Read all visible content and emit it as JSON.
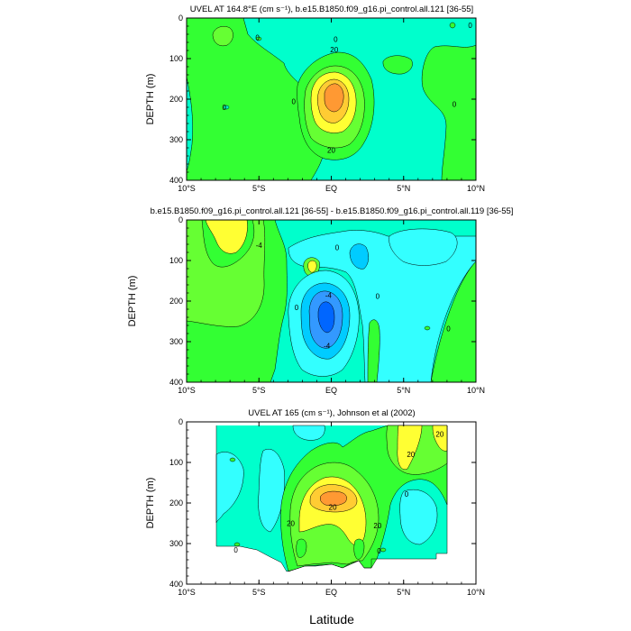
{
  "colors": {
    "cyan": "#33ffff",
    "lightblue": "#00ccff",
    "blue": "#3399ff",
    "darkblue": "#0066ff",
    "aqua": "#00ffcc",
    "green": "#33ff33",
    "lightgreen": "#66ff33",
    "yellow": "#ffff33",
    "orange": "#ffcc33",
    "darkorange": "#ff9933",
    "line": "#000000"
  },
  "x_tick_labels": [
    "10°S",
    "5°S",
    "EQ",
    "5°N",
    "10°N"
  ],
  "xlabel": "Latitude",
  "chart_data": [
    {
      "type": "contour",
      "title": "UVEL AT 164.8°E (cm s⁻¹), b.e15.B1850.f09_g16.pi_control.all.121 [36-55]",
      "xlabel": "",
      "ylabel": "DEPTH (m)",
      "xlim": [
        -10,
        10
      ],
      "ylim": [
        400,
        0
      ],
      "y_ticks": [
        "0",
        "100",
        "200",
        "300",
        "400"
      ],
      "contour_labels": [
        {
          "text": "0",
          "lat": -5.1,
          "depth": 48
        },
        {
          "text": "0",
          "lat": 0.3,
          "depth": 52
        },
        {
          "text": "0",
          "lat": 9.6,
          "depth": 18
        },
        {
          "text": "20",
          "lat": 0.2,
          "depth": 78
        },
        {
          "text": "0",
          "lat": -7.4,
          "depth": 220
        },
        {
          "text": "0",
          "lat": -2.6,
          "depth": 205
        },
        {
          "text": "0",
          "lat": 8.5,
          "depth": 212
        },
        {
          "text": "20",
          "lat": 0.0,
          "depth": 325
        }
      ]
    },
    {
      "type": "contour",
      "title": "b.e15.B1850.f09_g16.pi_control.all.121 [36-55] - b.e15.B1850.f09_g16.pi_control.all.119 [36-55]",
      "xlabel": "",
      "ylabel": "DEPTH (m)",
      "xlim": [
        -10,
        10
      ],
      "ylim": [
        400,
        0
      ],
      "y_ticks": [
        "0",
        "100",
        "200",
        "300",
        "400"
      ],
      "contour_labels": [
        {
          "text": "-4",
          "lat": -5.0,
          "depth": 62
        },
        {
          "text": "0",
          "lat": -2.4,
          "depth": 215
        },
        {
          "text": "0",
          "lat": 0.4,
          "depth": 68
        },
        {
          "text": "0",
          "lat": 3.2,
          "depth": 188
        },
        {
          "text": "0",
          "lat": 8.1,
          "depth": 268
        },
        {
          "text": "-4",
          "lat": -0.3,
          "depth": 310
        },
        {
          "text": "-4",
          "lat": -0.2,
          "depth": 185
        }
      ]
    },
    {
      "type": "contour",
      "title": "UVEL AT 165 (cm s⁻¹), Johnson et al (2002)",
      "xlabel": "Latitude",
      "ylabel": "DEPTH (m)",
      "xlim": [
        -10,
        10
      ],
      "ylim": [
        400,
        0
      ],
      "y_ticks": [
        "0",
        "100",
        "200",
        "300",
        "400"
      ],
      "contour_labels": [
        {
          "text": "20",
          "lat": 7.5,
          "depth": 30
        },
        {
          "text": "20",
          "lat": 5.5,
          "depth": 80
        },
        {
          "text": "0",
          "lat": 5.2,
          "depth": 178
        },
        {
          "text": "20",
          "lat": 0.1,
          "depth": 210
        },
        {
          "text": "20",
          "lat": -2.8,
          "depth": 250
        },
        {
          "text": "20",
          "lat": 3.2,
          "depth": 255
        },
        {
          "text": "0",
          "lat": -6.6,
          "depth": 315
        },
        {
          "text": "0",
          "lat": 3.3,
          "depth": 318
        }
      ]
    }
  ]
}
